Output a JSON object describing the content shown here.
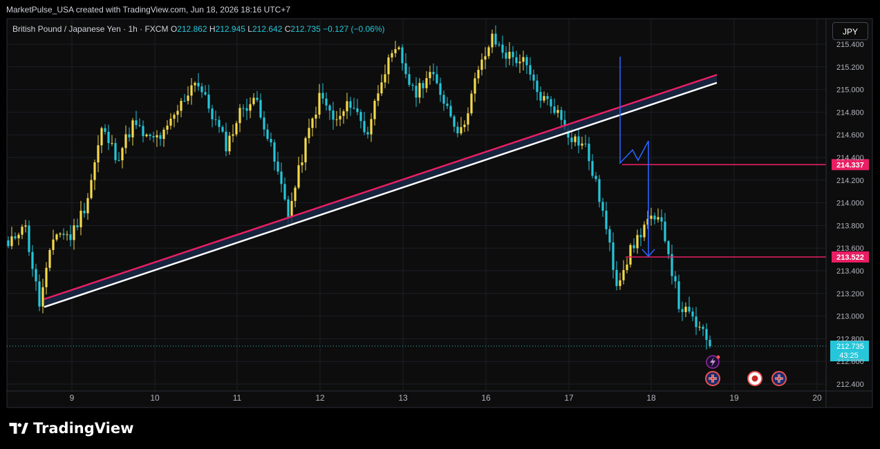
{
  "header": {
    "credit": "MarketPulse_USA created with TradingView.com, Jun 18, 2026 18:16 UTC+7"
  },
  "legend": {
    "symbol": "British Pound / Japanese Yen · 1h · FXCM",
    "o_label": "O",
    "o_value": "212.862",
    "h_label": "H",
    "h_value": "212.945",
    "l_label": "L",
    "l_value": "212.642",
    "c_label": "C",
    "c_value": "212.735",
    "change": "−0.127 (−0.06%)"
  },
  "currency_button": "JPY",
  "logo": {
    "text": "TradingView"
  },
  "colors": {
    "bull": "#f5d94a",
    "bear": "#26c6da",
    "trend_upper": "#e91e63",
    "trend_lower": "#ffffff",
    "level": "#e91e63",
    "arrow": "#2962ff",
    "price_badge": "#26c6da"
  },
  "chart_data": {
    "type": "candlestick",
    "title": "British Pound / Japanese Yen · 1h · FXCM",
    "xlabel": "",
    "ylabel": "",
    "ylim": [
      212.3,
      215.5
    ],
    "y_ticks": [
      "215.400",
      "215.200",
      "215.000",
      "214.800",
      "214.600",
      "214.400",
      "214.200",
      "214.000",
      "213.800",
      "213.600",
      "213.400",
      "213.200",
      "213.000",
      "212.800",
      "212.600",
      "212.400"
    ],
    "x_ticks": [
      "9",
      "10",
      "11",
      "12",
      "13",
      "16",
      "17",
      "18",
      "19",
      "20"
    ],
    "grid": true,
    "trendline_start": {
      "date": "9",
      "price_lower": 213.08,
      "price_upper": 213.15
    },
    "trendline_end": {
      "date": "18 (forward)",
      "price_lower": 215.06,
      "price_upper": 215.13
    },
    "levels": [
      {
        "label": "214.337",
        "value": 214.337
      },
      {
        "label": "213.522",
        "value": 213.522
      }
    ],
    "last_price": {
      "label": "212.735",
      "countdown": "43:25",
      "value": 212.735
    },
    "key_prices": [
      213.6,
      213.85,
      213.1,
      213.75,
      213.7,
      214.0,
      214.65,
      214.4,
      214.7,
      214.55,
      214.6,
      214.85,
      215.1,
      214.8,
      214.5,
      214.85,
      214.9,
      214.4,
      213.9,
      214.5,
      214.95,
      214.7,
      214.9,
      214.6,
      215.15,
      215.35,
      214.95,
      215.15,
      214.9,
      214.6,
      215.1,
      215.45,
      215.3,
      215.25,
      214.95,
      214.85,
      214.6,
      214.5,
      214.0,
      213.3,
      213.6,
      213.85,
      213.8,
      213.1,
      212.95,
      212.735
    ]
  }
}
